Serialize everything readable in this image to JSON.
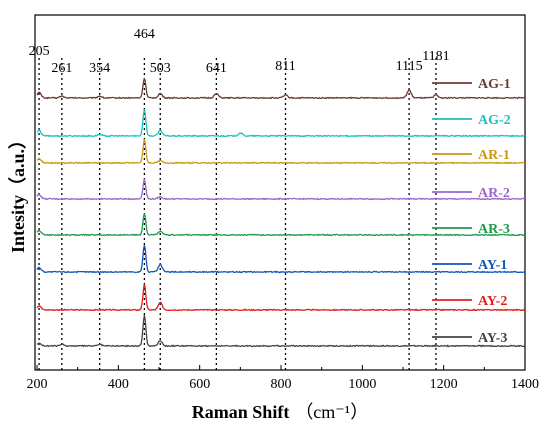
{
  "chart_data": {
    "type": "line",
    "title": "",
    "xlabel": "Raman Shift",
    "xlabel_unit": "（cm⁻¹）",
    "ylabel": "Intesity（a.u.）",
    "xlim": [
      195,
      1400
    ],
    "x_ticks": [
      200,
      400,
      600,
      800,
      1000,
      1200,
      1400
    ],
    "grid": false,
    "legend_position": "right, beside each trace",
    "reference_peaks": [
      205,
      261,
      354,
      464,
      503,
      641,
      811,
      1115,
      1181
    ],
    "series": [
      {
        "name": "AG-1",
        "color": "#6b3b33",
        "peaks": [
          [
            205,
            0.15
          ],
          [
            261,
            0.05
          ],
          [
            354,
            0.05
          ],
          [
            464,
            0.55
          ],
          [
            503,
            0.12
          ],
          [
            641,
            0.12
          ],
          [
            811,
            0.08
          ],
          [
            1115,
            0.22
          ],
          [
            1181,
            0.08
          ]
        ]
      },
      {
        "name": "AG-2",
        "color": "#19c2c2",
        "peaks": [
          [
            205,
            0.15
          ],
          [
            354,
            0.04
          ],
          [
            464,
            0.75
          ],
          [
            503,
            0.15
          ],
          [
            700,
            0.08
          ]
        ]
      },
      {
        "name": "AR-1",
        "color": "#c99a10",
        "peaks": [
          [
            205,
            0.12
          ],
          [
            464,
            0.65
          ],
          [
            503,
            0.06
          ]
        ]
      },
      {
        "name": "AR-2",
        "color": "#9a66cc",
        "peaks": [
          [
            205,
            0.12
          ],
          [
            464,
            0.55
          ],
          [
            503,
            0.06
          ]
        ]
      },
      {
        "name": "AR-3",
        "color": "#1f9a4b",
        "peaks": [
          [
            205,
            0.12
          ],
          [
            464,
            0.6
          ],
          [
            503,
            0.1
          ]
        ]
      },
      {
        "name": "AY-1",
        "color": "#1456bf",
        "peaks": [
          [
            205,
            0.12
          ],
          [
            464,
            0.75
          ],
          [
            503,
            0.2
          ]
        ]
      },
      {
        "name": "AY-2",
        "color": "#e0201c",
        "peaks": [
          [
            205,
            0.12
          ],
          [
            464,
            0.7
          ],
          [
            503,
            0.2
          ]
        ]
      },
      {
        "name": "AY-3",
        "color": "#444444",
        "peaks": [
          [
            205,
            0.08
          ],
          [
            261,
            0.04
          ],
          [
            354,
            0.04
          ],
          [
            464,
            0.85
          ],
          [
            503,
            0.15
          ]
        ]
      }
    ]
  }
}
